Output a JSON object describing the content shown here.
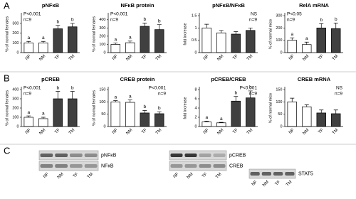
{
  "panels": [
    "A",
    "B",
    "C"
  ],
  "chart_data": [
    {
      "type": "bar",
      "title": "pNFκB",
      "y_label": "% of normal females",
      "categories": [
        "NF",
        "NM",
        "TF",
        "TM"
      ],
      "values": [
        100,
        100,
        245,
        265
      ],
      "errors": [
        15,
        15,
        35,
        35
      ],
      "colors": [
        "#ffffff",
        "#ffffff",
        "#404040",
        "#404040"
      ],
      "letters": [
        "a",
        "a",
        "b",
        "b"
      ],
      "annotations": [
        "P<0.001",
        "n=9"
      ],
      "ylim": [
        0,
        380
      ],
      "yticks": [
        0,
        100,
        200,
        300
      ]
    },
    {
      "type": "bar",
      "title": "NFκB protein",
      "y_label": "% of normal females",
      "categories": [
        "NF",
        "NM",
        "TF",
        "TM"
      ],
      "values": [
        100,
        120,
        320,
        280
      ],
      "errors": [
        15,
        20,
        40,
        60
      ],
      "colors": [
        "#ffffff",
        "#ffffff",
        "#404040",
        "#404040"
      ],
      "letters": [
        "a",
        "a",
        "b",
        "b"
      ],
      "annotations": [
        "P<0.001",
        "n=9"
      ],
      "ylim": [
        0,
        450
      ],
      "yticks": [
        0,
        100,
        200,
        300,
        400
      ]
    },
    {
      "type": "bar",
      "title": "pNFκB/NFκB",
      "y_label": "fold increase",
      "categories": [
        "NF",
        "NM",
        "TF",
        "TM"
      ],
      "values": [
        1.0,
        0.8,
        0.75,
        0.9
      ],
      "errors": [
        0.15,
        0.1,
        0.1,
        0.1
      ],
      "colors": [
        "#ffffff",
        "#ffffff",
        "#404040",
        "#404040"
      ],
      "annotations": [
        "NS",
        "n=9"
      ],
      "ylim": [
        0,
        1.5
      ],
      "yticks": [
        0,
        0.5,
        1,
        1.5
      ]
    },
    {
      "type": "bar",
      "title": "RelA mRNA",
      "y_label": "% of normal mice",
      "categories": [
        "NF",
        "NM",
        "TF",
        "TM"
      ],
      "values": [
        100,
        65,
        200,
        195
      ],
      "errors": [
        20,
        20,
        35,
        45
      ],
      "colors": [
        "#ffffff",
        "#ffffff",
        "#404040",
        "#404040"
      ],
      "letters": [
        "a",
        "a",
        "b",
        "b"
      ],
      "annotations": [
        "P<0.05",
        "n=9"
      ],
      "ylim": [
        0,
        300
      ],
      "yticks": [
        0,
        100,
        200,
        300
      ]
    },
    {
      "type": "bar",
      "title": "pCREB",
      "y_label": "% of normal females",
      "categories": [
        "NF",
        "NM",
        "TF",
        "TM"
      ],
      "values": [
        100,
        85,
        300,
        300
      ],
      "errors": [
        15,
        15,
        80,
        80
      ],
      "colors": [
        "#ffffff",
        "#ffffff",
        "#404040",
        "#404040"
      ],
      "letters": [
        "a",
        "a",
        "b",
        "b"
      ],
      "annotations": [
        "P<0.001",
        "n=9"
      ],
      "ylim": [
        0,
        400
      ],
      "yticks": [
        0,
        100,
        200,
        300,
        400
      ]
    },
    {
      "type": "bar",
      "title": "CREB protein",
      "y_label": "% of normal females",
      "categories": [
        "NF",
        "NM",
        "TF",
        "TM"
      ],
      "values": [
        100,
        98,
        55,
        52
      ],
      "errors": [
        5,
        10,
        10,
        8
      ],
      "colors": [
        "#ffffff",
        "#ffffff",
        "#404040",
        "#404040"
      ],
      "letters": [
        "a",
        "a",
        "b",
        "b"
      ],
      "annotations": [
        "P<0.001",
        "n=9"
      ],
      "ylim": [
        0,
        150
      ],
      "yticks": [
        0,
        50,
        100,
        150
      ]
    },
    {
      "type": "bar",
      "title": "pCREB/CREB",
      "y_label": "fold increase",
      "categories": [
        "NF",
        "NM",
        "TF",
        "TM"
      ],
      "values": [
        1.0,
        0.8,
        5.5,
        6.2
      ],
      "errors": [
        0.15,
        0.1,
        1.0,
        1.5
      ],
      "colors": [
        "#ffffff",
        "#ffffff",
        "#404040",
        "#404040"
      ],
      "letters": [
        "a",
        "a",
        "b",
        "b"
      ],
      "annotations": [
        "P<0.001",
        "n=9"
      ],
      "ylim": [
        0,
        8
      ],
      "yticks": [
        0,
        2,
        4,
        6,
        8
      ]
    },
    {
      "type": "bar",
      "title": "CREB mRNA",
      "y_label": "% of normal mice",
      "categories": [
        "NF",
        "NM",
        "TF",
        "TM"
      ],
      "values": [
        100,
        80,
        55,
        52
      ],
      "errors": [
        15,
        8,
        12,
        15
      ],
      "colors": [
        "#ffffff",
        "#ffffff",
        "#404040",
        "#404040"
      ],
      "annotations": [
        "NS",
        "n=9"
      ],
      "ylim": [
        0,
        150
      ],
      "yticks": [
        0,
        50,
        100,
        150
      ]
    }
  ],
  "blots": [
    {
      "rows": [
        "pNFκB",
        "NFκB"
      ],
      "lanes": [
        "NF",
        "NM",
        "TF",
        "TM"
      ]
    },
    {
      "rows": [
        "pCREB",
        "CREB"
      ],
      "lanes": [
        "NF",
        "NM",
        "TF",
        "TM"
      ]
    },
    {
      "rows": [
        "STAT5"
      ],
      "lanes": [
        "NF",
        "NM",
        "TF",
        "TM"
      ]
    }
  ]
}
